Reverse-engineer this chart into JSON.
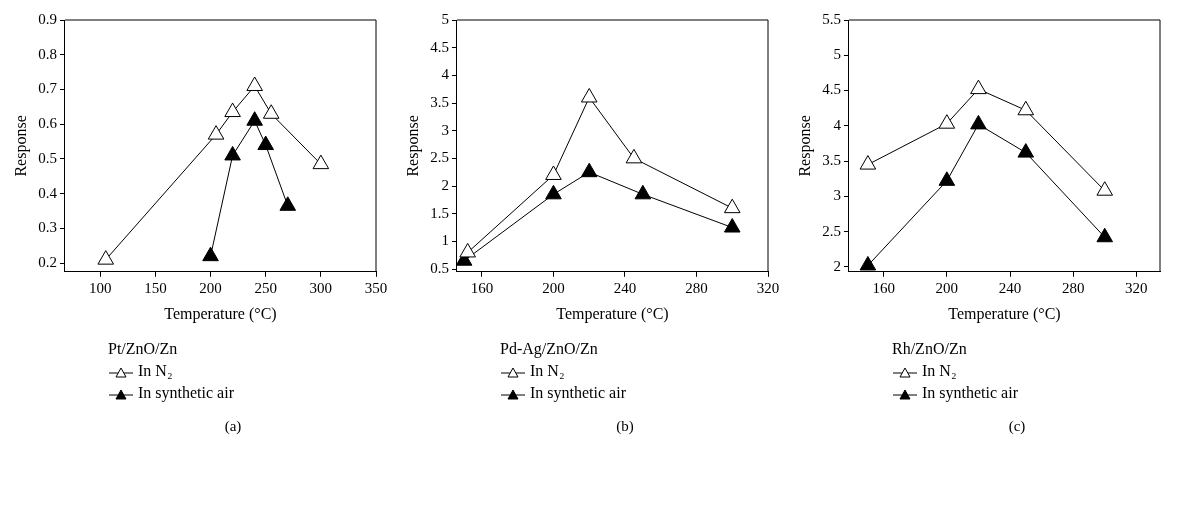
{
  "chart_data": [
    {
      "type": "line",
      "xlabel": "Temperature (°C)",
      "ylabel": "Response",
      "legend_title": "Pt/ZnO/Zn",
      "legend": "bottom",
      "marker": "triangle",
      "annotations": [
        "(a)"
      ],
      "xlim": [
        68,
        350
      ],
      "xticks": [
        100,
        150,
        200,
        250,
        300,
        350
      ],
      "ylim": [
        0.175,
        0.9
      ],
      "yticks": [
        0.2,
        0.3,
        0.4,
        0.5,
        0.6,
        0.7,
        0.8,
        0.9
      ],
      "series": [
        {
          "name": "In N₂",
          "color": "#ffffff",
          "x": [
            105,
            205,
            220,
            240,
            255,
            300
          ],
          "values": [
            0.21,
            0.57,
            0.635,
            0.71,
            0.63,
            0.485
          ]
        },
        {
          "name": "In synthetic air",
          "color": "#000000",
          "x": [
            200,
            220,
            240,
            250,
            270
          ],
          "values": [
            0.22,
            0.51,
            0.61,
            0.54,
            0.365
          ]
        }
      ]
    },
    {
      "type": "line",
      "xlabel": "Temperature (°C)",
      "ylabel": "Response",
      "legend_title": "Pd-Ag/ZnO/Zn",
      "legend": "bottom",
      "marker": "triangle",
      "annotations": [
        "(b)"
      ],
      "xlim": [
        146,
        320
      ],
      "xticks": [
        160,
        200,
        240,
        280,
        320
      ],
      "ylim": [
        0.45,
        5
      ],
      "yticks": [
        0.5,
        1,
        1.5,
        2,
        2.5,
        3,
        3.5,
        4,
        4.5,
        5
      ],
      "series": [
        {
          "name": "In N₂",
          "color": "#ffffff",
          "x": [
            152,
            200,
            220,
            245,
            300
          ],
          "values": [
            0.8,
            2.2,
            3.6,
            2.5,
            1.6
          ]
        },
        {
          "name": "In synthetic air",
          "color": "#000000",
          "x": [
            150,
            200,
            220,
            250,
            300
          ],
          "values": [
            0.65,
            1.85,
            2.25,
            1.85,
            1.25
          ]
        }
      ]
    },
    {
      "type": "line",
      "xlabel": "Temperature (°C)",
      "ylabel": "Response",
      "legend_title": "Rh/ZnO/Zn",
      "legend": "bottom",
      "marker": "triangle",
      "annotations": [
        "(c)"
      ],
      "xlim": [
        138,
        335
      ],
      "xticks": [
        160,
        200,
        240,
        280,
        320
      ],
      "ylim": [
        1.93,
        5.5
      ],
      "yticks": [
        2,
        2.5,
        3,
        3.5,
        4,
        4.5,
        5,
        5.5
      ],
      "series": [
        {
          "name": "In N₂",
          "color": "#ffffff",
          "x": [
            150,
            200,
            220,
            250,
            300
          ],
          "values": [
            3.45,
            4.03,
            4.52,
            4.22,
            3.08
          ]
        },
        {
          "name": "In synthetic air",
          "color": "#000000",
          "x": [
            150,
            200,
            220,
            250,
            300
          ],
          "values": [
            2.02,
            3.22,
            4.02,
            3.62,
            2.42
          ]
        }
      ]
    }
  ]
}
